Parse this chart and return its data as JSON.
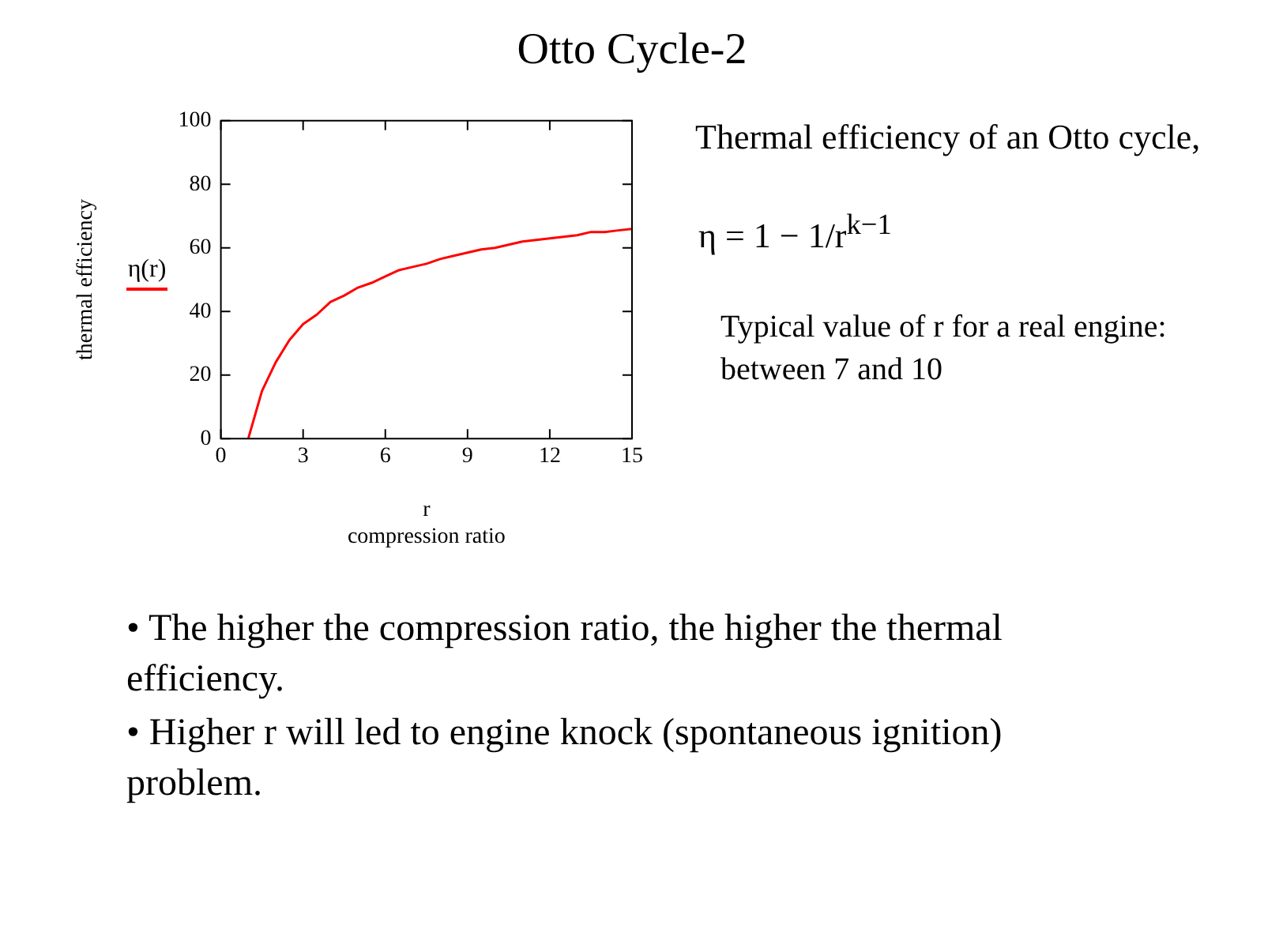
{
  "chart_data": {
    "type": "line",
    "title": "Otto Cycle-2",
    "xlabel": "r\ncompression ratio",
    "ylabel": "thermal efficiency",
    "x": [
      1,
      1.5,
      2,
      2.5,
      3,
      3.5,
      4,
      4.5,
      5,
      5.5,
      6,
      6.5,
      7,
      7.5,
      8,
      8.5,
      9,
      9.5,
      10,
      10.5,
      11,
      11.5,
      12,
      12.5,
      13,
      13.5,
      14,
      14.5,
      15
    ],
    "series": [
      {
        "name": "η(r)",
        "color": "#ff0000",
        "values": [
          0,
          15,
          24,
          31,
          36,
          39,
          43,
          45,
          47.5,
          49,
          51,
          53,
          54,
          55,
          56.5,
          57.5,
          58.5,
          59.5,
          60,
          61,
          62,
          62.5,
          63,
          63.5,
          64,
          65,
          65,
          65.5,
          66
        ]
      }
    ],
    "xlim": [
      0,
      15
    ],
    "xticks": [
      0,
      3,
      6,
      9,
      12,
      15
    ],
    "ylim": [
      0,
      100
    ],
    "yticks": [
      0,
      20,
      40,
      60,
      80,
      100
    ],
    "grid": false,
    "legend": "left",
    "marker": "none",
    "line_style": "solid",
    "annotations": [
      "Thermal efficiency of an Otto cycle,",
      "η = 1 − 1/r$^{k−1}$",
      "Typical value of r for a real engine: between 7 and 10",
      "• The higher the compression ratio, the higher the thermal efficiency.",
      "• Higher r will led to engine knock (spontaneous ignition) problem."
    ]
  }
}
